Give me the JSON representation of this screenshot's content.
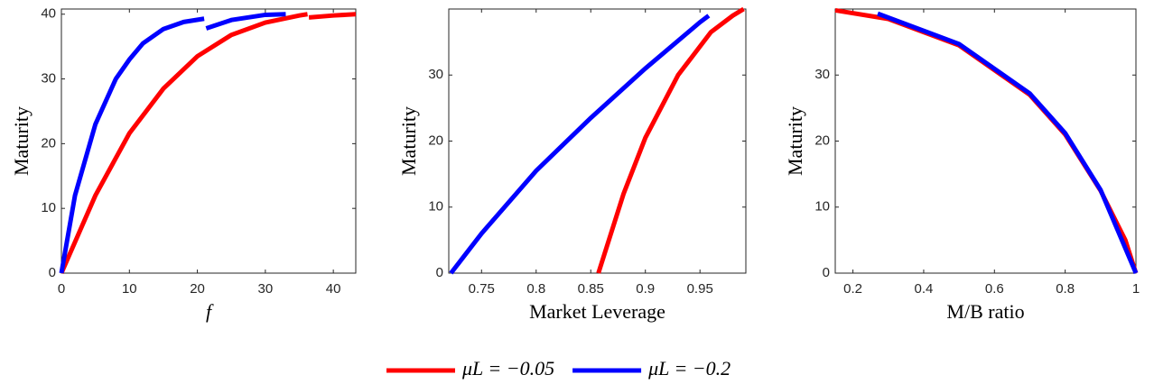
{
  "chart_data": [
    {
      "type": "line",
      "x_label": "f",
      "y_label": "Maturity",
      "xlim": [
        0,
        43.3
      ],
      "ylim": [
        0,
        40.8
      ],
      "xticks": [
        0,
        10,
        20,
        30,
        40
      ],
      "yticks": [
        0,
        10,
        20,
        30,
        40
      ],
      "series": [
        {
          "name": "μL = −0.05",
          "color": "#ff0000",
          "x": [
            0,
            5,
            10,
            15,
            20,
            25,
            30,
            35,
            36.2,
            null,
            36.4,
            40,
            43.3
          ],
          "values": [
            0,
            12,
            21.6,
            28.5,
            33.5,
            36.8,
            38.7,
            39.8,
            40,
            null,
            39.5,
            39.8,
            40
          ]
        },
        {
          "name": "μL = −0.2",
          "color": "#0000ff",
          "x": [
            0,
            2,
            5,
            8,
            10,
            12,
            15,
            18,
            21,
            null,
            21.3,
            25,
            30,
            33
          ],
          "values": [
            0,
            12,
            23,
            30,
            33,
            35.5,
            37.7,
            38.8,
            39.3,
            null,
            37.8,
            39.1,
            39.9,
            40
          ]
        }
      ]
    },
    {
      "type": "line",
      "x_label": "Market Leverage",
      "y_label": "Maturity",
      "xlim": [
        0.72,
        0.992
      ],
      "ylim": [
        0,
        40
      ],
      "xticks": [
        0.75,
        0.8,
        0.85,
        0.9,
        0.95
      ],
      "yticks": [
        0,
        10,
        20,
        30
      ],
      "series": [
        {
          "name": "μL = −0.05",
          "color": "#ff0000",
          "x": [
            0.857,
            0.88,
            0.9,
            0.93,
            0.96,
            0.98,
            0.99
          ],
          "values": [
            0,
            12,
            20.5,
            30,
            36.5,
            39,
            40
          ]
        },
        {
          "name": "μL = −0.2",
          "color": "#0000ff",
          "x": [
            0.722,
            0.75,
            0.8,
            0.85,
            0.9,
            0.95,
            0.958
          ],
          "values": [
            0,
            6,
            15.5,
            23.5,
            31,
            38,
            39
          ]
        }
      ]
    },
    {
      "type": "line",
      "x_label": "M/B ratio",
      "y_label": "Maturity",
      "xlim": [
        0.15,
        1.0
      ],
      "ylim": [
        0,
        40
      ],
      "xticks": [
        0.2,
        0.4,
        0.6,
        0.8,
        1
      ],
      "yticks": [
        0,
        10,
        20,
        30
      ],
      "series": [
        {
          "name": "μL = −0.05",
          "color": "#ff0000",
          "x": [
            0.15,
            0.3,
            0.5,
            0.7,
            0.8,
            0.9,
            0.97,
            1
          ],
          "values": [
            39.8,
            38.5,
            34.5,
            27,
            21,
            12.5,
            5,
            0
          ]
        },
        {
          "name": "μL = −0.2",
          "color": "#0000ff",
          "x": [
            0.27,
            0.5,
            0.7,
            0.8,
            0.9,
            1
          ],
          "values": [
            39.3,
            34.7,
            27.2,
            21.2,
            12.6,
            0
          ]
        }
      ]
    }
  ]
}
